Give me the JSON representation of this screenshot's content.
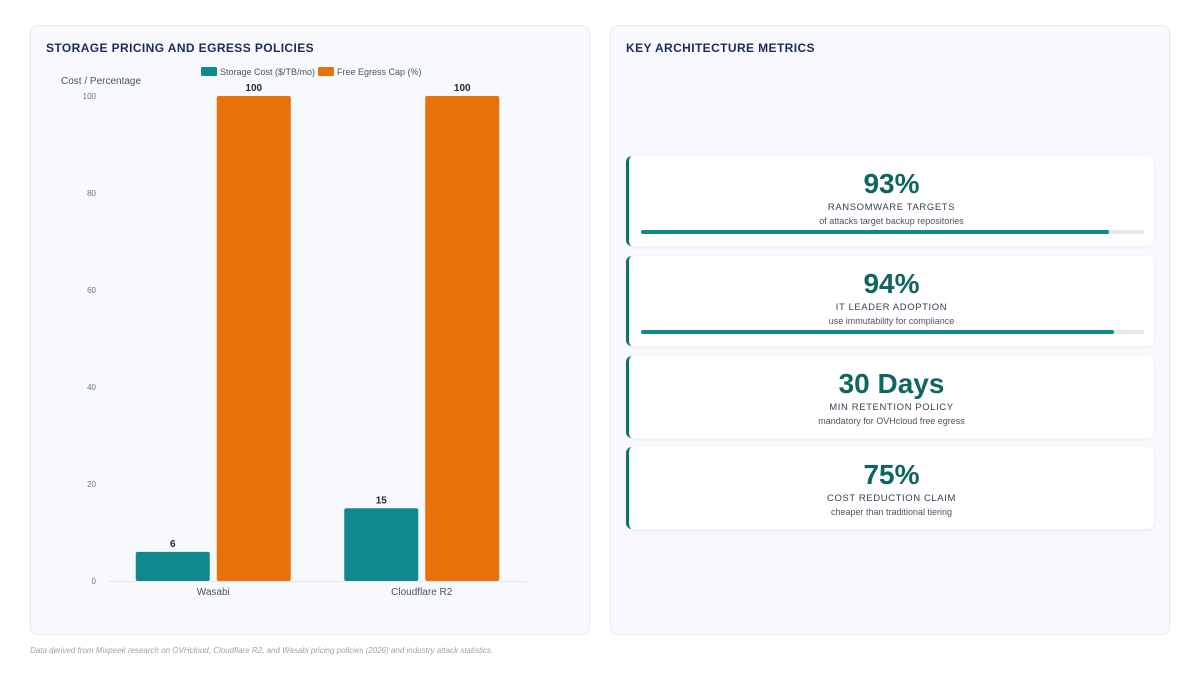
{
  "left_panel": {
    "title": "STORAGE PRICING AND EGRESS POLICIES"
  },
  "right_panel": {
    "title": "KEY ARCHITECTURE METRICS"
  },
  "chart_data": {
    "type": "bar",
    "categories": [
      "Wasabi",
      "Cloudflare R2"
    ],
    "series": [
      {
        "name": "Storage Cost ($/TB/mo)",
        "values": [
          6,
          15
        ],
        "color": "#0e8a8f"
      },
      {
        "name": "Free Egress Cap (%)",
        "values": [
          100,
          100
        ],
        "color": "#e8710a"
      }
    ],
    "ylabel": "Cost / Percentage",
    "xlabel": "",
    "ylim": [
      0,
      100
    ],
    "yticks": [
      "0",
      "20",
      "40",
      "60",
      "80",
      "100"
    ],
    "data_labels": true,
    "legend_position": "top-center",
    "grid": false
  },
  "metrics": [
    {
      "value": "93%",
      "label": "RANSOMWARE TARGETS",
      "sub": "of attacks target backup repositories",
      "progress": 0.93
    },
    {
      "value": "94%",
      "label": "IT LEADER ADOPTION",
      "sub": "use immutability for compliance",
      "progress": 0.94
    },
    {
      "value": "30 Days",
      "label": "MIN RETENTION POLICY",
      "sub": "mandatory for OVHcloud free egress"
    },
    {
      "value": "75%",
      "label": "COST REDUCTION CLAIM",
      "sub": "cheaper than traditional tiering"
    }
  ],
  "footer": {
    "note": "Data derived from Mixpeek research on OVHcloud, Cloudflare R2, and Wasabi pricing policies (2026) and industry attack statistics."
  },
  "colors": {
    "accent": "#0e6660",
    "teal": "#0e8a8f",
    "orange": "#e8710a",
    "title": "#1e2a5e"
  }
}
